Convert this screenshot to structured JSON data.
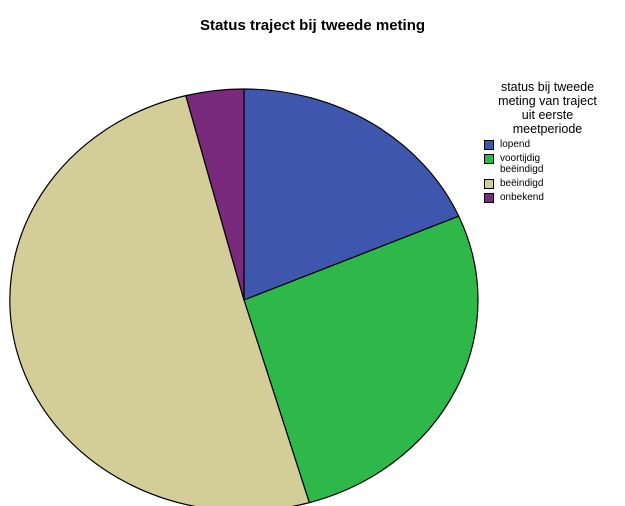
{
  "chart_data": {
    "type": "pie",
    "title": "Status traject bij tweede meting",
    "legend_title": "status bij tweede\nmeting van traject\nuit eerste\nmeetperiode",
    "legend_position": "right",
    "categories": [
      "lopend",
      "voortijdig\nbeëindigd",
      "beëindigd",
      "onbekend"
    ],
    "values": [
      18.5,
      27.0,
      50.5,
      4.0
    ],
    "colors": [
      "#3e56ae",
      "#2eb84a",
      "#d3cd97",
      "#7a2a7c"
    ],
    "start_angle": "12 o'clock",
    "direction": "clockwise"
  }
}
